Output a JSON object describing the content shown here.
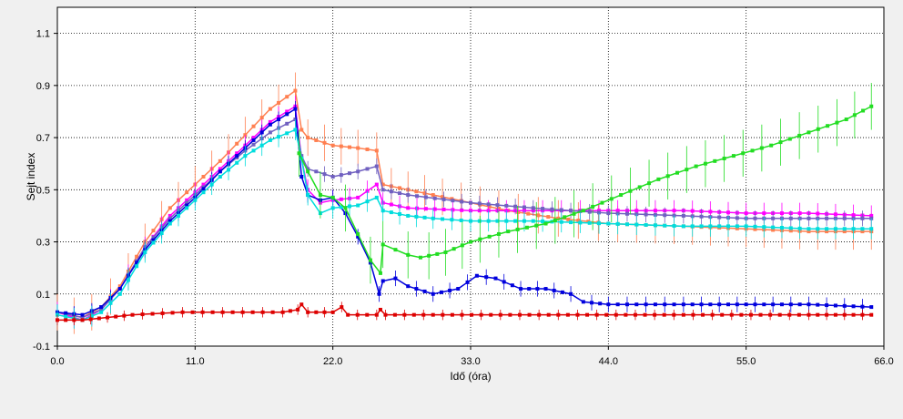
{
  "chart_data": {
    "type": "line",
    "xlabel": "Idő (óra)",
    "ylabel": "Sejt index",
    "xlim": [
      0,
      66
    ],
    "ylim": [
      -0.1,
      1.2
    ],
    "x_ticks": [
      0,
      11,
      22,
      33,
      44,
      55,
      66
    ],
    "x_tick_labels": [
      "0.0",
      "11.0",
      "22.0",
      "33.0",
      "44.0",
      "55.0",
      "66.0"
    ],
    "y_ticks": [
      -0.1,
      0.1,
      0.3,
      0.5,
      0.7,
      0.9,
      1.1
    ],
    "y_tick_labels": [
      "-0.1",
      "0.1",
      "0.3",
      "0.5",
      "0.7",
      "0.9",
      "1.1"
    ],
    "grid": true,
    "series": [
      {
        "color": "#ff7f50",
        "error": 0.07,
        "points": [
          [
            0,
            0.03
          ],
          [
            2,
            0.01
          ],
          [
            3.5,
            0.05
          ],
          [
            5,
            0.13
          ],
          [
            7,
            0.3
          ],
          [
            9,
            0.43
          ],
          [
            11,
            0.52
          ],
          [
            13,
            0.61
          ],
          [
            15,
            0.71
          ],
          [
            17,
            0.81
          ],
          [
            19,
            0.88
          ],
          [
            19.5,
            0.73
          ],
          [
            20,
            0.7
          ],
          [
            22,
            0.67
          ],
          [
            24,
            0.66
          ],
          [
            25.5,
            0.65
          ],
          [
            26,
            0.52
          ],
          [
            28,
            0.5
          ],
          [
            30,
            0.48
          ],
          [
            33,
            0.45
          ],
          [
            36,
            0.42
          ],
          [
            40,
            0.39
          ],
          [
            44,
            0.37
          ],
          [
            50,
            0.36
          ],
          [
            55,
            0.35
          ],
          [
            60,
            0.34
          ],
          [
            65,
            0.34
          ]
        ]
      },
      {
        "color": "#ff00ff",
        "error": 0.04,
        "points": [
          [
            0,
            0.03
          ],
          [
            2,
            0
          ],
          [
            3.5,
            0.04
          ],
          [
            5,
            0.12
          ],
          [
            7,
            0.28
          ],
          [
            9,
            0.4
          ],
          [
            11,
            0.49
          ],
          [
            13,
            0.58
          ],
          [
            15,
            0.67
          ],
          [
            17,
            0.76
          ],
          [
            19,
            0.82
          ],
          [
            19.5,
            0.62
          ],
          [
            20,
            0.5
          ],
          [
            21,
            0.45
          ],
          [
            22,
            0.46
          ],
          [
            24,
            0.47
          ],
          [
            25.5,
            0.52
          ],
          [
            26,
            0.45
          ],
          [
            28,
            0.43
          ],
          [
            33,
            0.42
          ],
          [
            38,
            0.42
          ],
          [
            44,
            0.42
          ],
          [
            50,
            0.42
          ],
          [
            55,
            0.41
          ],
          [
            60,
            0.41
          ],
          [
            65,
            0.4
          ]
        ]
      },
      {
        "color": "#7060c0",
        "error": 0.03,
        "points": [
          [
            0,
            0.03
          ],
          [
            2,
            0.01
          ],
          [
            3.5,
            0.04
          ],
          [
            5,
            0.12
          ],
          [
            7,
            0.28
          ],
          [
            9,
            0.39
          ],
          [
            11,
            0.48
          ],
          [
            13,
            0.57
          ],
          [
            15,
            0.65
          ],
          [
            17,
            0.72
          ],
          [
            19,
            0.77
          ],
          [
            19.5,
            0.63
          ],
          [
            20,
            0.58
          ],
          [
            22,
            0.55
          ],
          [
            24,
            0.57
          ],
          [
            25.5,
            0.59
          ],
          [
            26,
            0.5
          ],
          [
            28,
            0.48
          ],
          [
            33,
            0.45
          ],
          [
            38,
            0.43
          ],
          [
            44,
            0.41
          ],
          [
            50,
            0.4
          ],
          [
            55,
            0.39
          ],
          [
            60,
            0.39
          ],
          [
            65,
            0.39
          ]
        ]
      },
      {
        "color": "#0000dd",
        "error": 0.03,
        "points": [
          [
            0,
            0.03
          ],
          [
            2,
            0.02
          ],
          [
            3.5,
            0.05
          ],
          [
            5,
            0.12
          ],
          [
            7,
            0.27
          ],
          [
            9,
            0.38
          ],
          [
            11,
            0.47
          ],
          [
            13,
            0.57
          ],
          [
            15,
            0.66
          ],
          [
            17,
            0.75
          ],
          [
            19,
            0.81
          ],
          [
            19.5,
            0.55
          ],
          [
            20,
            0.48
          ],
          [
            21,
            0.46
          ],
          [
            22,
            0.47
          ],
          [
            23,
            0.41
          ],
          [
            24,
            0.32
          ],
          [
            25,
            0.22
          ],
          [
            25.7,
            0.1
          ],
          [
            26,
            0.15
          ],
          [
            27,
            0.16
          ],
          [
            28,
            0.13
          ],
          [
            30,
            0.1
          ],
          [
            32,
            0.12
          ],
          [
            33.5,
            0.17
          ],
          [
            35,
            0.16
          ],
          [
            37,
            0.12
          ],
          [
            39,
            0.12
          ],
          [
            41,
            0.1
          ],
          [
            42,
            0.07
          ],
          [
            44,
            0.06
          ],
          [
            50,
            0.06
          ],
          [
            55,
            0.06
          ],
          [
            60,
            0.06
          ],
          [
            65,
            0.05
          ]
        ]
      },
      {
        "color": "#00dddd",
        "error": 0.04,
        "points": [
          [
            0,
            0.02
          ],
          [
            2,
            0
          ],
          [
            3.5,
            0.03
          ],
          [
            5,
            0.1
          ],
          [
            7,
            0.26
          ],
          [
            9,
            0.37
          ],
          [
            11,
            0.46
          ],
          [
            13,
            0.55
          ],
          [
            15,
            0.63
          ],
          [
            17,
            0.69
          ],
          [
            19,
            0.73
          ],
          [
            19.5,
            0.62
          ],
          [
            20,
            0.48
          ],
          [
            21,
            0.41
          ],
          [
            22,
            0.43
          ],
          [
            24,
            0.44
          ],
          [
            25.5,
            0.47
          ],
          [
            26,
            0.42
          ],
          [
            28,
            0.4
          ],
          [
            30,
            0.39
          ],
          [
            33,
            0.38
          ],
          [
            38,
            0.38
          ],
          [
            44,
            0.37
          ],
          [
            50,
            0.36
          ],
          [
            55,
            0.36
          ],
          [
            60,
            0.35
          ],
          [
            65,
            0.35
          ]
        ]
      },
      {
        "color": "#22dd22",
        "error": 0.09,
        "points": [
          [
            19.3,
            0.64
          ],
          [
            20,
            0.57
          ],
          [
            21,
            0.48
          ],
          [
            22,
            0.47
          ],
          [
            23,
            0.43
          ],
          [
            24,
            0.33
          ],
          [
            25,
            0.23
          ],
          [
            25.8,
            0.18
          ],
          [
            26,
            0.29
          ],
          [
            27,
            0.27
          ],
          [
            28,
            0.25
          ],
          [
            29,
            0.24
          ],
          [
            31,
            0.26
          ],
          [
            33,
            0.3
          ],
          [
            36,
            0.34
          ],
          [
            39,
            0.37
          ],
          [
            42,
            0.42
          ],
          [
            45,
            0.48
          ],
          [
            48,
            0.54
          ],
          [
            51,
            0.59
          ],
          [
            54,
            0.63
          ],
          [
            57,
            0.67
          ],
          [
            60,
            0.72
          ],
          [
            63,
            0.77
          ],
          [
            65,
            0.82
          ]
        ]
      },
      {
        "color": "#dd0000",
        "error": 0.02,
        "points": [
          [
            0,
            0
          ],
          [
            2,
            0
          ],
          [
            4,
            0.01
          ],
          [
            6,
            0.02
          ],
          [
            10,
            0.03
          ],
          [
            14,
            0.03
          ],
          [
            18,
            0.03
          ],
          [
            19.2,
            0.04
          ],
          [
            19.5,
            0.06
          ],
          [
            20,
            0.03
          ],
          [
            22,
            0.03
          ],
          [
            22.7,
            0.05
          ],
          [
            23.2,
            0.02
          ],
          [
            25.5,
            0.02
          ],
          [
            25.8,
            0.04
          ],
          [
            26.2,
            0.02
          ],
          [
            30,
            0.02
          ],
          [
            40,
            0.02
          ],
          [
            50,
            0.02
          ],
          [
            60,
            0.02
          ],
          [
            65,
            0.02
          ]
        ]
      }
    ]
  }
}
